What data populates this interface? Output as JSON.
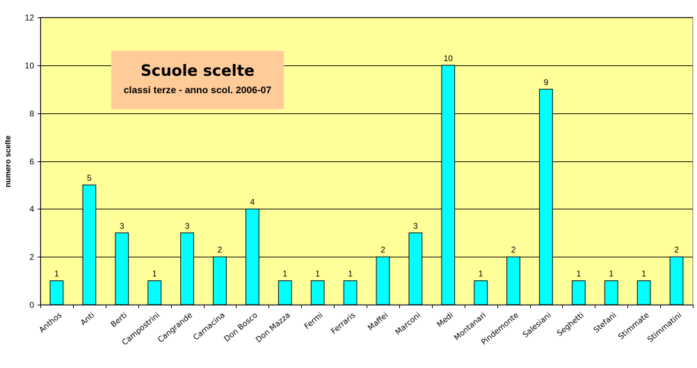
{
  "chart_data": {
    "type": "bar",
    "title": "Scuole scelte",
    "subtitle": "classi terze - anno scol. 2006-07",
    "ylabel": "numero scelte",
    "xlabel": "",
    "ylim": [
      0,
      12
    ],
    "yticks": [
      "0",
      "2",
      "4",
      "6",
      "8",
      "10",
      "12"
    ],
    "grid": true,
    "legend": "none",
    "categories": [
      "Anthos",
      "Anti",
      "Berti",
      "Campostrini",
      "Cangrande",
      "Carnacina",
      "Don Bosco",
      "Don Mazza",
      "Fermi",
      "Ferraris",
      "Maffei",
      "Marconi",
      "Medi",
      "Montanari",
      "Pindemonte",
      "Salesiani",
      "Seghetti",
      "Stefani",
      "Stimmate",
      "Stimmatini"
    ],
    "values": [
      1,
      5,
      3,
      1,
      3,
      2,
      4,
      1,
      1,
      1,
      2,
      3,
      10,
      1,
      2,
      9,
      1,
      1,
      1,
      2
    ],
    "colors": {
      "plot_bg": "#ffff99",
      "bar": "#00ffff",
      "bar_stroke": "#000000",
      "grid": "#000000",
      "title_bg": "#ffcc99"
    }
  }
}
